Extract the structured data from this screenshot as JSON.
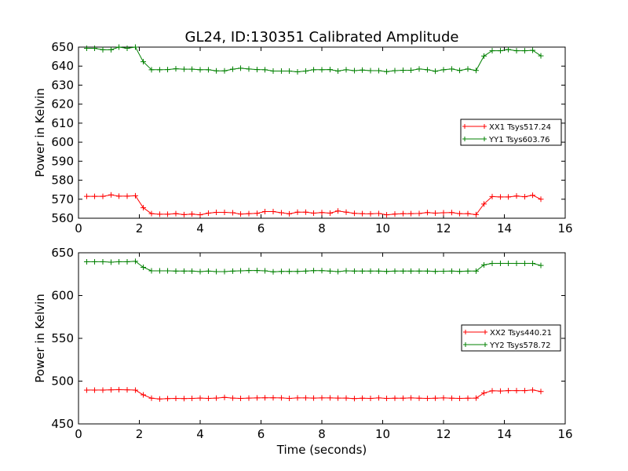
{
  "figure": {
    "title": "GL24, ID:130351 Calibrated Amplitude"
  },
  "chart_data": [
    {
      "type": "line",
      "title": "GL24, ID:130351 Calibrated Amplitude",
      "xlabel": "",
      "ylabel": "Power in Kelvin",
      "xlim": [
        0,
        16
      ],
      "ylim": [
        560,
        650
      ],
      "xticks": [
        0,
        2,
        4,
        6,
        8,
        10,
        12,
        14,
        16
      ],
      "yticks": [
        560,
        570,
        580,
        590,
        600,
        610,
        620,
        630,
        640,
        650
      ],
      "grid": false,
      "legend_position": "center-right",
      "x": [
        0.27,
        0.53,
        0.8,
        1.07,
        1.33,
        1.6,
        1.87,
        2.13,
        2.4,
        2.67,
        2.93,
        3.2,
        3.47,
        3.73,
        4.0,
        4.27,
        4.53,
        4.8,
        5.07,
        5.33,
        5.6,
        5.87,
        6.13,
        6.4,
        6.67,
        6.93,
        7.2,
        7.47,
        7.73,
        8.0,
        8.27,
        8.53,
        8.8,
        9.07,
        9.33,
        9.6,
        9.87,
        10.13,
        10.4,
        10.67,
        10.93,
        11.2,
        11.47,
        11.73,
        12.0,
        12.27,
        12.53,
        12.8,
        13.07,
        13.33,
        13.6,
        13.87,
        14.13,
        14.4,
        14.67,
        14.93,
        15.2
      ],
      "series": [
        {
          "name": "XX1 Tsys517.24",
          "color": "#ff0000",
          "values": [
            571.5,
            571.5,
            571.5,
            572.3,
            571.6,
            571.6,
            571.8,
            565.5,
            562.4,
            562.1,
            562.1,
            562.4,
            561.9,
            562.2,
            561.8,
            562.7,
            563.1,
            563.1,
            562.9,
            562.2,
            562.4,
            562.6,
            563.5,
            563.5,
            562.9,
            562.3,
            563.2,
            563.2,
            562.7,
            563.0,
            562.7,
            563.8,
            563.2,
            562.6,
            562.4,
            562.3,
            562.5,
            561.8,
            562.2,
            562.4,
            562.4,
            562.5,
            563.0,
            562.7,
            562.9,
            563.0,
            562.4,
            562.4,
            561.9,
            567.5,
            571.4,
            571.2,
            571.2,
            571.7,
            571.3,
            572.1,
            570.0
          ]
        },
        {
          "name": "YY1 Tsys603.76",
          "color": "#008000",
          "values": [
            649.4,
            649.4,
            648.6,
            648.6,
            650.0,
            649.4,
            650.0,
            642.3,
            638.1,
            638.1,
            638.2,
            638.6,
            638.4,
            638.4,
            638.1,
            638.1,
            637.5,
            637.5,
            638.4,
            638.9,
            638.5,
            638.2,
            638.1,
            637.4,
            637.4,
            637.4,
            637.0,
            637.4,
            638.1,
            638.1,
            638.2,
            637.4,
            638.1,
            637.6,
            637.9,
            637.6,
            637.6,
            637.1,
            637.6,
            637.8,
            637.8,
            638.5,
            638.1,
            637.3,
            638.1,
            638.5,
            637.7,
            638.5,
            637.7,
            645.3,
            648.1,
            648.1,
            648.7,
            648.1,
            648.1,
            648.3,
            645.4
          ]
        }
      ]
    },
    {
      "type": "line",
      "title": "",
      "xlabel": "Time (seconds)",
      "ylabel": "Power in Kelvin",
      "xlim": [
        0,
        16
      ],
      "ylim": [
        450,
        650
      ],
      "xticks": [
        0,
        2,
        4,
        6,
        8,
        10,
        12,
        14,
        16
      ],
      "yticks": [
        450,
        500,
        550,
        600,
        650
      ],
      "grid": false,
      "legend_position": "center-right",
      "x": [
        0.27,
        0.53,
        0.8,
        1.07,
        1.33,
        1.6,
        1.87,
        2.13,
        2.4,
        2.67,
        2.93,
        3.2,
        3.47,
        3.73,
        4.0,
        4.27,
        4.53,
        4.8,
        5.07,
        5.33,
        5.6,
        5.87,
        6.13,
        6.4,
        6.67,
        6.93,
        7.2,
        7.47,
        7.73,
        8.0,
        8.27,
        8.53,
        8.8,
        9.07,
        9.33,
        9.6,
        9.87,
        10.13,
        10.4,
        10.67,
        10.93,
        11.2,
        11.47,
        11.73,
        12.0,
        12.27,
        12.53,
        12.8,
        13.07,
        13.33,
        13.6,
        13.87,
        14.13,
        14.4,
        14.67,
        14.93,
        15.2
      ],
      "series": [
        {
          "name": "XX2 Tsys440.21",
          "color": "#ff0000",
          "values": [
            489.5,
            489.5,
            489.5,
            489.8,
            490.0,
            489.8,
            489.5,
            483.9,
            480.0,
            479.1,
            479.6,
            479.8,
            479.6,
            479.8,
            480.2,
            479.8,
            480.2,
            481.0,
            480.2,
            479.8,
            480.2,
            480.4,
            480.5,
            480.5,
            480.4,
            479.8,
            480.4,
            480.4,
            480.2,
            480.4,
            480.4,
            480.2,
            480.2,
            479.6,
            480.0,
            479.8,
            480.4,
            479.8,
            480.0,
            480.0,
            480.4,
            480.0,
            479.8,
            480.0,
            480.4,
            480.0,
            479.8,
            480.0,
            480.2,
            486.1,
            488.7,
            488.4,
            488.9,
            488.9,
            488.9,
            489.6,
            487.9
          ]
        },
        {
          "name": "YY2 Tsys578.72",
          "color": "#008000",
          "values": [
            639.5,
            639.5,
            639.5,
            639.0,
            639.5,
            639.5,
            640.0,
            633.0,
            628.9,
            628.9,
            628.9,
            628.6,
            628.6,
            628.6,
            628.0,
            628.6,
            628.0,
            628.0,
            628.6,
            628.9,
            629.3,
            629.3,
            628.9,
            627.8,
            628.2,
            628.2,
            628.2,
            628.6,
            629.1,
            629.1,
            628.6,
            628.0,
            628.9,
            628.6,
            628.6,
            628.6,
            628.6,
            628.2,
            628.6,
            628.6,
            628.6,
            628.6,
            628.6,
            628.2,
            628.4,
            628.6,
            628.2,
            628.6,
            628.6,
            635.8,
            637.6,
            637.6,
            637.6,
            637.6,
            637.6,
            637.6,
            635.2
          ]
        }
      ]
    }
  ]
}
